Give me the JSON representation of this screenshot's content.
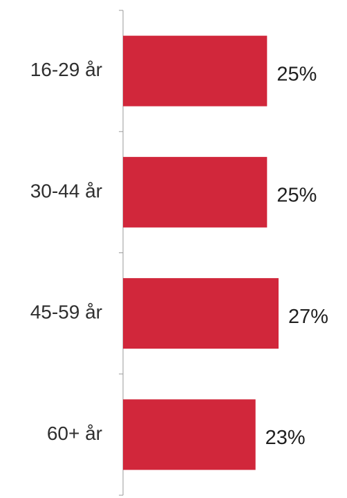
{
  "chart_data": {
    "type": "bar",
    "orientation": "horizontal",
    "categories": [
      "16-29 år",
      "30-44 år",
      "45-59 år",
      "60+ år"
    ],
    "values": [
      25,
      25,
      27,
      23
    ],
    "value_labels": [
      "25%",
      "25%",
      "27%",
      "23%"
    ],
    "title": "",
    "xlabel": "",
    "ylabel": "",
    "xlim": [
      0,
      30
    ],
    "grid": false,
    "legend": "none",
    "bar_color": "#d1273b"
  }
}
